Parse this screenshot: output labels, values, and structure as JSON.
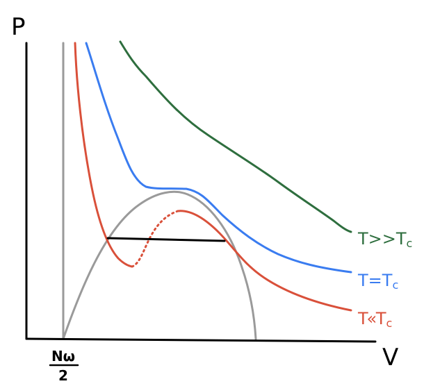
{
  "axes": {
    "y_label": "P",
    "x_label": "V",
    "asymptote_label_numerator": "Nω",
    "asymptote_label_denominator": "2"
  },
  "curves": [
    {
      "id": "high",
      "label": "T>>Tc",
      "label_main": "T>>T",
      "label_sub": "c",
      "color": "#2e6e3e"
    },
    {
      "id": "critical",
      "label": "T=Tc",
      "label_main": "T=T",
      "label_sub": "c",
      "color": "#3a7cf0"
    },
    {
      "id": "low",
      "label": "T<<Tc",
      "label_main": "T«T",
      "label_sub": "c",
      "color": "#d9503a"
    }
  ],
  "colors": {
    "axis": "#000000",
    "asymptote": "#9a9a9a",
    "coexistence_dome": "#9a9a9a",
    "tie_line": "#000000"
  }
}
